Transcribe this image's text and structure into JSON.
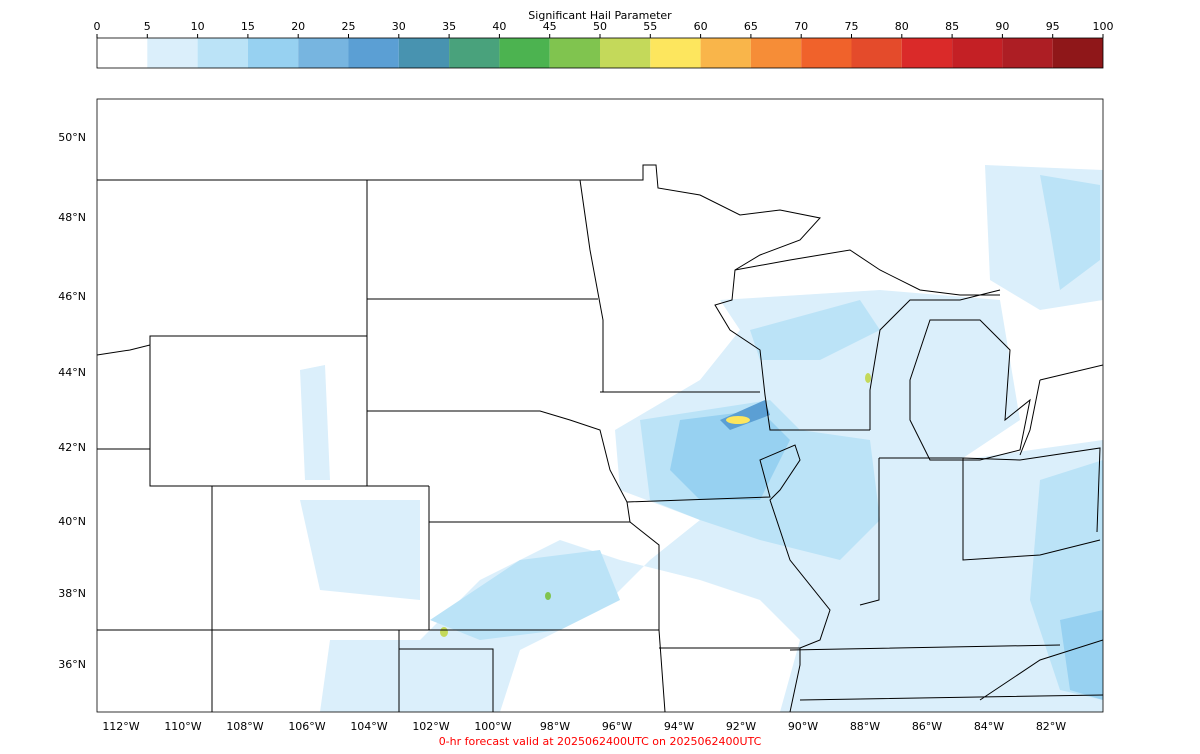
{
  "colorbar": {
    "title": "Significant Hail Parameter",
    "ticks": [
      0,
      5,
      10,
      15,
      20,
      25,
      30,
      35,
      40,
      45,
      50,
      55,
      60,
      65,
      70,
      75,
      80,
      85,
      90,
      95,
      100
    ],
    "colors": [
      "#ffffff",
      "#dbeffb",
      "#bbe3f7",
      "#97d1f1",
      "#77b5e0",
      "#5b9fd4",
      "#4893b0",
      "#49a27c",
      "#4cb350",
      "#80c44f",
      "#c4d95a",
      "#fde65e",
      "#f9b54a",
      "#f68d37",
      "#f0622b",
      "#e44b2b",
      "#da2a29",
      "#c42025",
      "#ad1e24",
      "#8f1719"
    ]
  },
  "map": {
    "lat_labels": [
      "50°N",
      "48°N",
      "46°N",
      "44°N",
      "42°N",
      "40°N",
      "38°N",
      "36°N"
    ],
    "lon_labels": [
      "112°W",
      "110°W",
      "108°W",
      "106°W",
      "104°W",
      "102°W",
      "100°W",
      "98°W",
      "96°W",
      "94°W",
      "92°W",
      "90°W",
      "88°W",
      "86°W",
      "84°W",
      "82°W"
    ],
    "footer": "0-hr forecast valid at 2025062400UTC on 2025062400UTC"
  }
}
